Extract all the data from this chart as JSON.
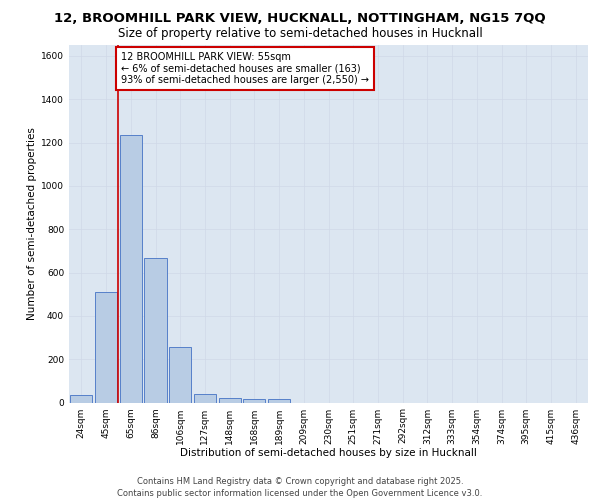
{
  "title_line1": "12, BROOMHILL PARK VIEW, HUCKNALL, NOTTINGHAM, NG15 7QQ",
  "title_line2": "Size of property relative to semi-detached houses in Hucknall",
  "xlabel": "Distribution of semi-detached houses by size in Hucknall",
  "ylabel": "Number of semi-detached properties",
  "categories": [
    "24sqm",
    "45sqm",
    "65sqm",
    "86sqm",
    "106sqm",
    "127sqm",
    "148sqm",
    "168sqm",
    "189sqm",
    "209sqm",
    "230sqm",
    "251sqm",
    "271sqm",
    "292sqm",
    "312sqm",
    "333sqm",
    "354sqm",
    "374sqm",
    "395sqm",
    "415sqm",
    "436sqm"
  ],
  "values": [
    35,
    510,
    1235,
    665,
    255,
    40,
    22,
    18,
    18,
    0,
    0,
    0,
    0,
    0,
    0,
    0,
    0,
    0,
    0,
    0,
    0
  ],
  "bar_color": "#b8cce4",
  "bar_edge_color": "#4472c4",
  "grid_color": "#d0d8e8",
  "bg_color": "#dce6f1",
  "annotation_box_text": "12 BROOMHILL PARK VIEW: 55sqm\n← 6% of semi-detached houses are smaller (163)\n93% of semi-detached houses are larger (2,550) →",
  "annotation_box_color": "#ffffff",
  "annotation_box_edge_color": "#cc0000",
  "vline_color": "#cc0000",
  "vline_x": 1.5,
  "ylim": [
    0,
    1650
  ],
  "yticks": [
    0,
    200,
    400,
    600,
    800,
    1000,
    1200,
    1400,
    1600
  ],
  "footer_text": "Contains HM Land Registry data © Crown copyright and database right 2025.\nContains public sector information licensed under the Open Government Licence v3.0.",
  "title_fontsize": 9.5,
  "subtitle_fontsize": 8.5,
  "axis_label_fontsize": 7.5,
  "tick_fontsize": 6.5,
  "annotation_fontsize": 7,
  "footer_fontsize": 6
}
